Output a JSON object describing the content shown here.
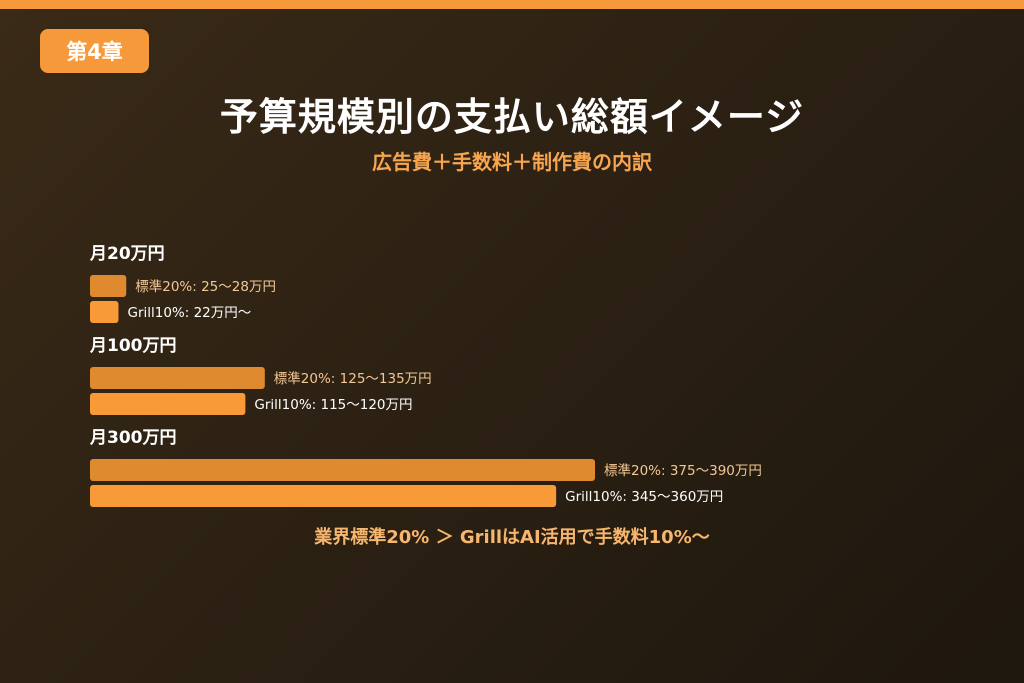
{
  "badge": "第4章",
  "title": "予算規模別の支払い総額イメージ",
  "subtitle": "広告費＋手数料＋制作費の内訳",
  "footer": "業界標準20% ＞ GrillはAI活用で手数料10%〜",
  "colors": {
    "accent": "#f5993a",
    "standard_bar": "#e08a30",
    "grill_bar": "#f89a38",
    "standard_label": "#f3c795",
    "grill_label": "#ffffff"
  },
  "chart_data": {
    "type": "bar",
    "orientation": "horizontal",
    "title": "予算規模別の支払い総額イメージ",
    "subtitle": "広告費＋手数料＋制作費の内訳",
    "unit": "万円",
    "grid": false,
    "groups": [
      {
        "label": "月20万円",
        "bars": [
          {
            "series": "標準20%",
            "label": "標準20%: 25〜28万円",
            "value": 28
          },
          {
            "series": "Grill10%",
            "label": "Grill10%: 22万円〜",
            "value": 22
          }
        ]
      },
      {
        "label": "月100万円",
        "bars": [
          {
            "series": "標準20%",
            "label": "標準20%: 125〜135万円",
            "value": 135
          },
          {
            "series": "Grill10%",
            "label": "Grill10%: 115〜120万円",
            "value": 120
          }
        ]
      },
      {
        "label": "月300万円",
        "bars": [
          {
            "series": "標準20%",
            "label": "標準20%: 375〜390万円",
            "value": 390
          },
          {
            "series": "Grill10%",
            "label": "Grill10%: 345〜360万円",
            "value": 360
          }
        ]
      }
    ]
  }
}
